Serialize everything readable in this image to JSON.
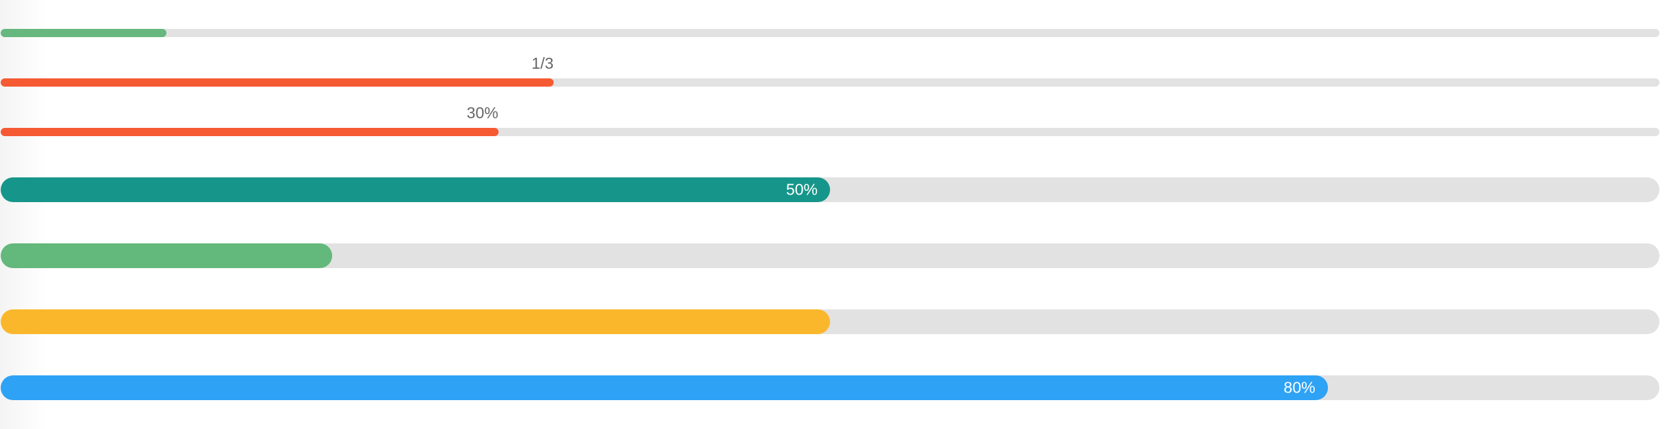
{
  "progress_bars": [
    {
      "name": "progress-bar-1",
      "value": 0.1,
      "color": "#66b87f",
      "size": "thin"
    },
    {
      "name": "progress-bar-2",
      "value": 0.3333,
      "color": "#f55a33",
      "size": "thin",
      "label": "1/3",
      "label_position": "above"
    },
    {
      "name": "progress-bar-3",
      "value": 0.3,
      "color": "#f55a33",
      "size": "thin",
      "label": "30%",
      "label_position": "above"
    },
    {
      "name": "progress-bar-4",
      "value": 0.5,
      "color": "#16968a",
      "size": "thick",
      "label": "50%",
      "label_position": "inside"
    },
    {
      "name": "progress-bar-5",
      "value": 0.2,
      "color": "#63b87b",
      "size": "thick"
    },
    {
      "name": "progress-bar-6",
      "value": 0.5,
      "color": "#fbb72c",
      "size": "thick"
    },
    {
      "name": "progress-bar-7",
      "value": 0.8,
      "color": "#2ea2f5",
      "size": "thick",
      "label": "80%",
      "label_position": "inside"
    }
  ]
}
